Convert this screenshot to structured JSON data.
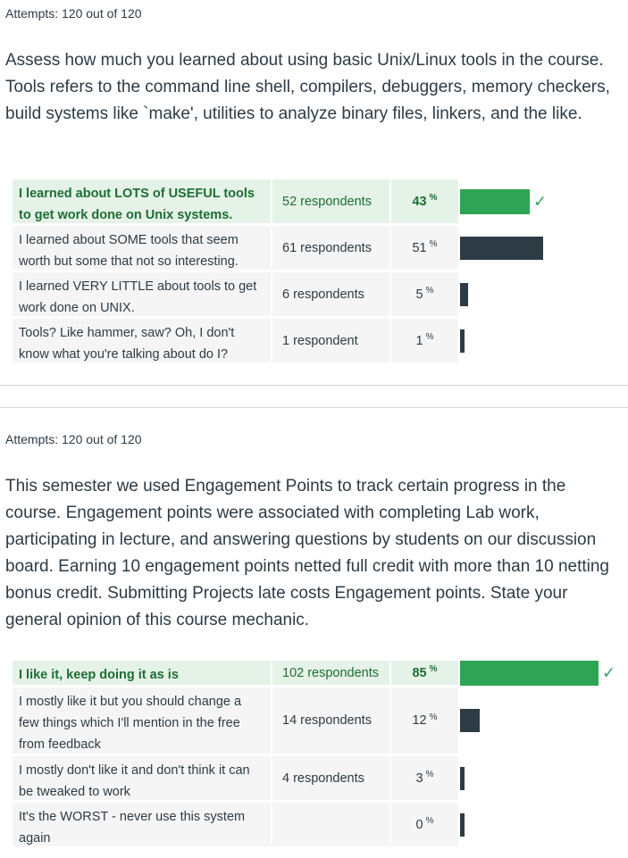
{
  "q1": {
    "attempts": "Attempts: 120 out of 120",
    "text": "Assess how much you learned about using basic Unix/Linux tools in the course. Tools refers to the command line shell, compilers, debuggers, memory checkers, build systems like `make', utilities to analyze binary files, linkers, and the like.",
    "answers": [
      {
        "text": "I learned about LOTS of USEFUL tools to get work done on Unix systems.",
        "respondents": "52 respondents",
        "pct": "43",
        "fraction": 0.43,
        "correct": true
      },
      {
        "text": "I learned about SOME tools that seem worth but some that not so interesting.",
        "respondents": "61 respondents",
        "pct": "51",
        "fraction": 0.51,
        "correct": false
      },
      {
        "text": "I learned VERY LITTLE about tools to get work done on UNIX.",
        "respondents": "6 respondents",
        "pct": "5",
        "fraction": 0.05,
        "correct": false
      },
      {
        "text": "Tools? Like hammer, saw? Oh, I don't know what you're talking about do I?",
        "respondents": "1 respondent",
        "pct": "1",
        "fraction": 0.01,
        "correct": false
      }
    ]
  },
  "q2": {
    "attempts": "Attempts: 120 out of 120",
    "text": "This semester we used Engagement Points to track certain progress in the course. Engagement points were associated with completing Lab work, participating in lecture, and answering questions by students on our discussion board.  Earning 10 engagement points netted full credit with more than 10 netting bonus credit. Submitting Projects late costs Engagement points.  State your general opinion of this course mechanic.",
    "answers": [
      {
        "text": "I like it, keep doing it as is",
        "respondents": "102 respondents",
        "pct": "85",
        "fraction": 0.85,
        "correct": true
      },
      {
        "text": "I mostly like it but you should change a few things which I'll mention in the free from feedback",
        "respondents": "14 respondents",
        "pct": "12",
        "fraction": 0.12,
        "correct": false
      },
      {
        "text": "I mostly don't like it and don't think it can be tweaked to work",
        "respondents": "4 respondents",
        "pct": "3",
        "fraction": 0.03,
        "correct": false
      },
      {
        "text": "It's the WORST - never use this system again",
        "respondents": "",
        "pct": "0",
        "fraction": 0.0,
        "correct": false
      }
    ]
  },
  "ui": {
    "percent_symbol": "%",
    "check_icon": "check-icon",
    "correct_color": "#2fa454",
    "bar_color": "#2d3b45"
  }
}
